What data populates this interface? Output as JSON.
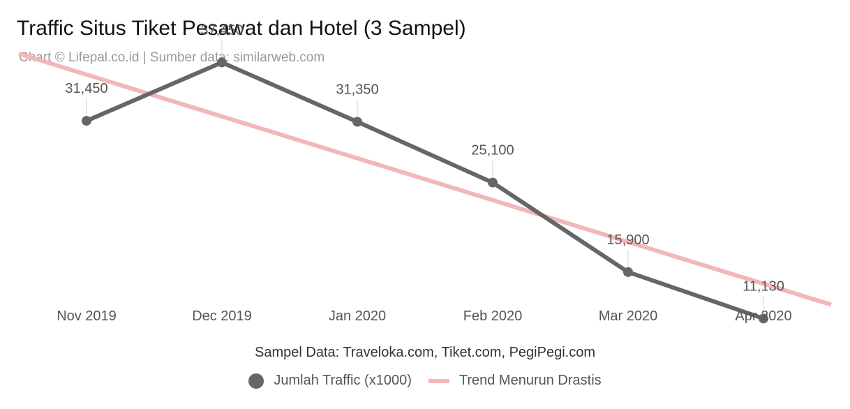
{
  "header": {
    "title": "Traffic Situs Tiket Pesawat dan Hotel (3 Sampel)",
    "subtitle": "Chart © Lifepal.co.id | Sumber data: similarweb.com"
  },
  "footnote": "Sampel Data: Traveloka.com, Tiket.com, PegiPegi.com",
  "chart_data": {
    "type": "line",
    "title": "Traffic Situs Tiket Pesawat dan Hotel (3 Sampel)",
    "subtitle": "Chart © Lifepal.co.id | Sumber data: similarweb.com",
    "categories": [
      "Nov 2019",
      "Dec 2019",
      "Jan 2020",
      "Feb 2020",
      "Mar 2020",
      "Apr 2020"
    ],
    "series": [
      {
        "name": "Jumlah Traffic (x1000)",
        "values": [
          31450,
          37450,
          31350,
          25100,
          15900,
          11130
        ],
        "labels": [
          "31,450",
          "37,450",
          "31,350",
          "25,100",
          "15,900",
          "11,130"
        ],
        "color": "#666666"
      },
      {
        "name": "Trend Menurun Drastis",
        "type": "trendline",
        "values": [
          36200,
          31900,
          27600,
          23300,
          19000,
          14700
        ],
        "color": "#f4b6b6"
      }
    ],
    "ylim": [
      9000,
      41000
    ],
    "grid": false,
    "legend": "bottom-center"
  }
}
